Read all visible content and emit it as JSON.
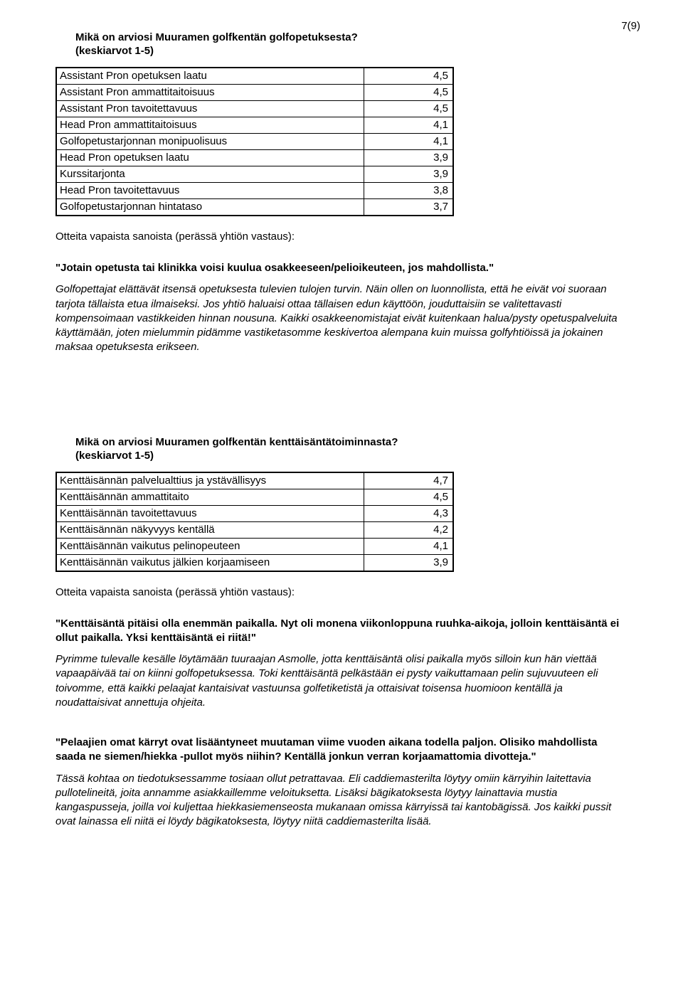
{
  "page_number": "7(9)",
  "section1": {
    "title": "Mikä on arviosi Muuramen golfkentän golfopetuksesta?",
    "subtitle": "(keskiarvot 1-5)",
    "rows": [
      {
        "label": "Assistant Pron opetuksen laatu",
        "value": "4,5"
      },
      {
        "label": "Assistant Pron ammattitaitoisuus",
        "value": "4,5"
      },
      {
        "label": "Assistant Pron tavoitettavuus",
        "value": "4,5"
      },
      {
        "label": "Head Pron ammattitaitoisuus",
        "value": "4,1"
      },
      {
        "label": "Golfopetustarjonnan monipuolisuus",
        "value": "4,1"
      },
      {
        "label": "Head Pron opetuksen laatu",
        "value": "3,9"
      },
      {
        "label": "Kurssitarjonta",
        "value": "3,9"
      },
      {
        "label": "Head Pron tavoitettavuus",
        "value": "3,8"
      },
      {
        "label": "Golfopetustarjonnan hintataso",
        "value": "3,7"
      }
    ],
    "excerpts_intro": "Otteita vapaista sanoista (perässä yhtiön vastaus):",
    "quote1": "\"Jotain opetusta tai klinikka voisi kuulua osakkeeseen/pelioikeuteen, jos mahdollista.\"",
    "reply1": "Golfopettajat elättävät itsensä opetuksesta tulevien tulojen turvin. Näin ollen on luonnollista, että he eivät voi suoraan tarjota tällaista etua ilmaiseksi. Jos yhtiö haluaisi ottaa tällaisen edun käyttöön, jouduttaisiin se valitettavasti kompensoimaan vastikkeiden hinnan nousuna. Kaikki osakkeenomistajat eivät kuitenkaan halua/pysty opetuspalveluita käyttämään, joten mielummin pidämme vastiketasomme keskivertoa alempana kuin muissa golfyhtiöissä ja jokainen maksaa opetuksesta erikseen."
  },
  "section2": {
    "title": "Mikä on arviosi Muuramen golfkentän kenttäisäntätoiminnasta?",
    "subtitle": "(keskiarvot 1-5)",
    "rows": [
      {
        "label": "Kenttäisännän palvelualttius ja ystävällisyys",
        "value": "4,7"
      },
      {
        "label": "Kenttäisännän ammattitaito",
        "value": "4,5"
      },
      {
        "label": "Kenttäisännän tavoitettavuus",
        "value": "4,3"
      },
      {
        "label": "Kenttäisännän näkyvyys kentällä",
        "value": "4,2"
      },
      {
        "label": "Kenttäisännän vaikutus pelinopeuteen",
        "value": "4,1"
      },
      {
        "label": "Kenttäisännän vaikutus jälkien korjaamiseen",
        "value": "3,9"
      }
    ],
    "excerpts_intro": "Otteita vapaista sanoista (perässä yhtiön vastaus):",
    "quote1": "\"Kenttäisäntä pitäisi olla enemmän paikalla. Nyt oli monena viikonloppuna ruuhka-aikoja, jolloin kenttäisäntä ei ollut paikalla. Yksi kenttäisäntä ei riitä!\"",
    "reply1": "Pyrimme tulevalle kesälle löytämään tuuraajan Asmolle, jotta kenttäisäntä olisi paikalla myös silloin kun hän viettää vapaapäivää tai on kiinni golfopetuksessa. Toki kenttäisäntä pelkästään ei pysty vaikuttamaan pelin sujuvuuteen eli toivomme, että kaikki pelaajat kantaisivat vastuunsa golfetiketistä ja ottaisivat toisensa huomioon kentällä ja noudattaisivat annettuja ohjeita.",
    "quote2": "\"Pelaajien omat kärryt ovat lisääntyneet muutaman viime vuoden aikana todella paljon. Olisiko mahdollista saada ne siemen/hiekka -pullot myös niihin? Kentällä jonkun verran korjaamattomia divotteja.\"",
    "reply2": "Tässä kohtaa on tiedotuksessamme tosiaan ollut petrattavaa. Eli caddiemasterilta löytyy omiin kärryihin laitettavia pullotelineitä, joita annamme asiakkaillemme veloituksetta. Lisäksi bägikatoksesta löytyy lainattavia mustia kangaspusseja, joilla voi kuljettaa hiekkasiemenseosta mukanaan omissa kärryissä tai kantobägissä. Jos kaikki pussit ovat lainassa eli niitä ei löydy bägikatoksesta, löytyy niitä caddiemasterilta lisää."
  }
}
